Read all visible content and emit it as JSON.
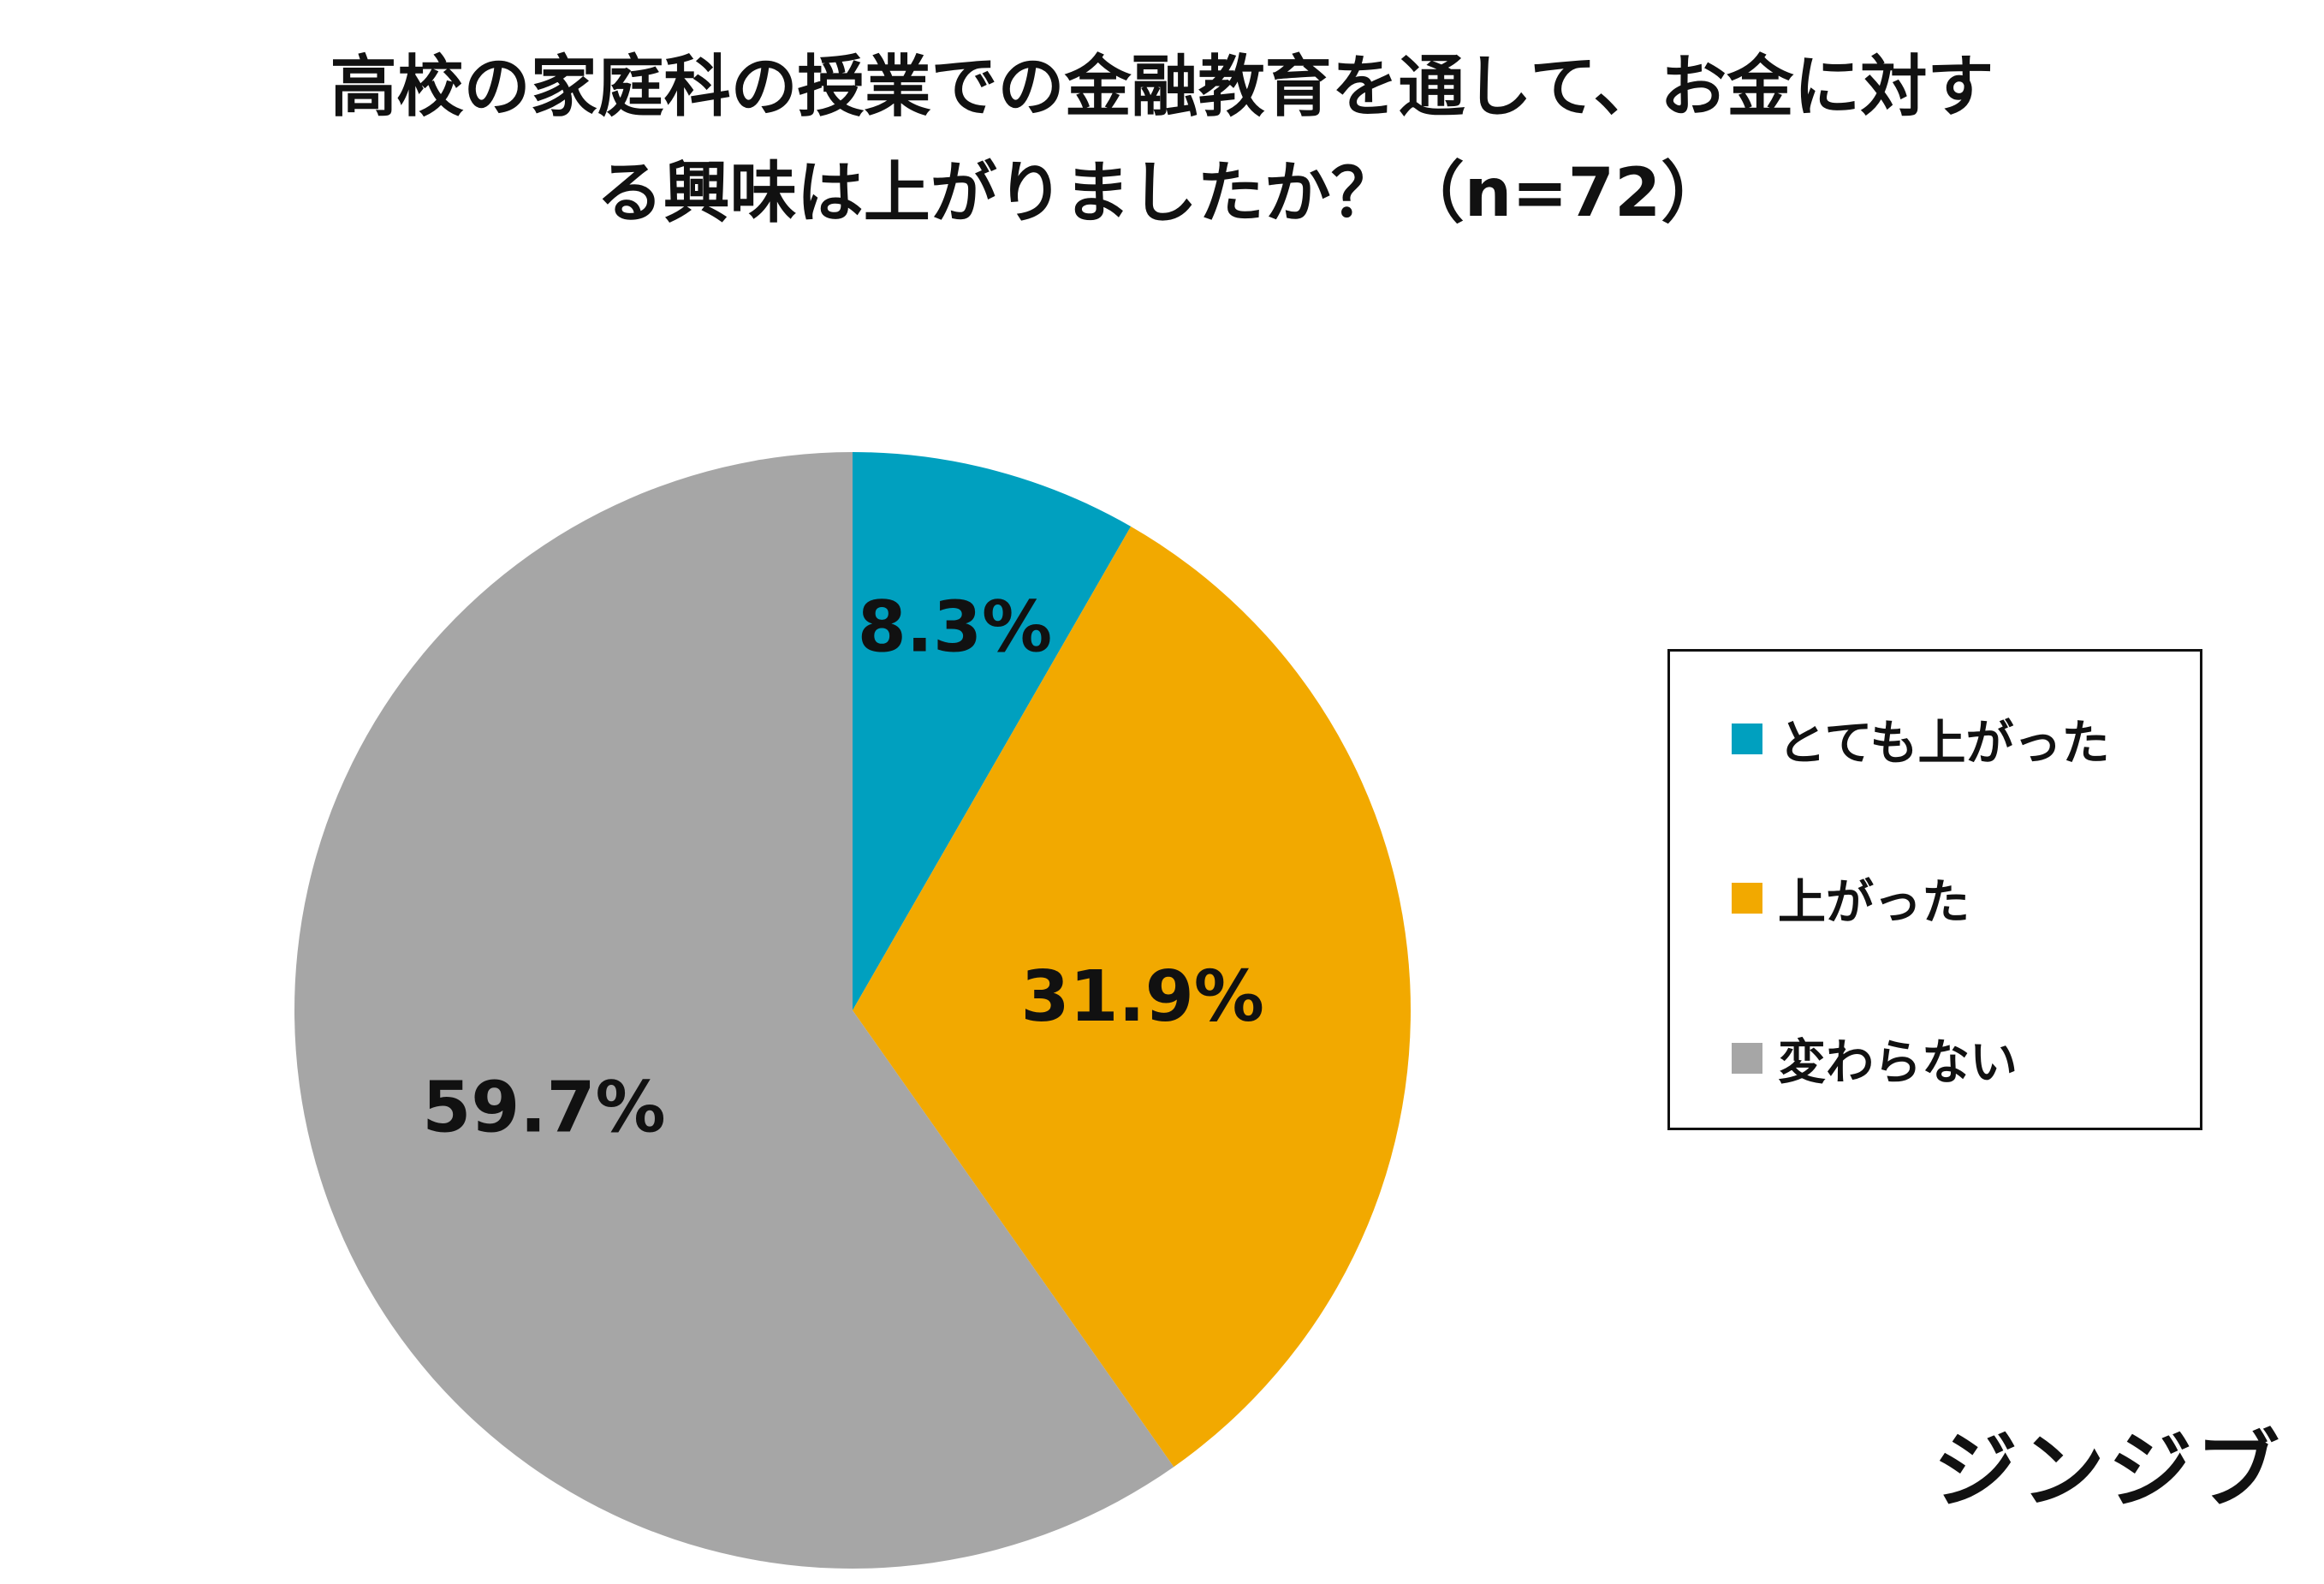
{
  "chart_data": {
    "type": "pie",
    "title_lines": [
      "高校の家庭科の授業での金融教育を通して、お金に対す",
      "る興味は上がりましたか？（n=72）"
    ],
    "slices": [
      {
        "name": "とても上がった",
        "value": 8.3,
        "label": "8.3%",
        "color": "#00a0bf"
      },
      {
        "name": "上がった",
        "value": 31.9,
        "label": "31.9%",
        "color": "#f2a900"
      },
      {
        "name": "変わらない",
        "value": 59.7,
        "label": "59.7%",
        "color": "#a6a6a6"
      }
    ],
    "legend_position": "right"
  },
  "brand": "ジンジブ"
}
